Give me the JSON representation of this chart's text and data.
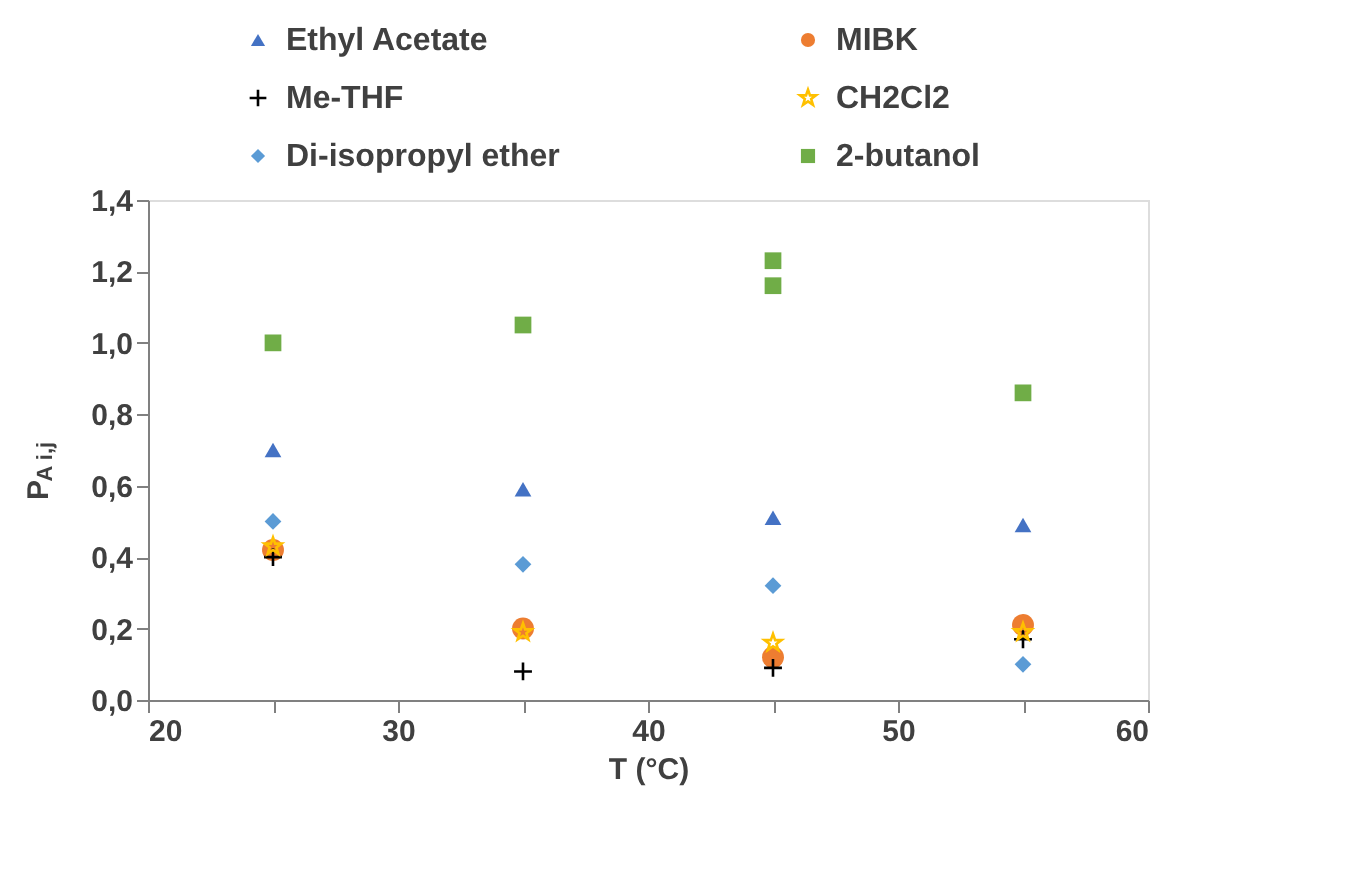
{
  "chart_data": {
    "type": "scatter",
    "xlabel": "T (°C)",
    "ylabel": "P$_{A i,j}$",
    "x": [
      25,
      35,
      45,
      55
    ],
    "series": [
      {
        "name": "Ethyl Acetate",
        "color": "#4472c4",
        "marker": "triangle",
        "values": [
          0.7,
          0.59,
          0.51,
          0.49
        ]
      },
      {
        "name": "MIBK",
        "color": "#ed7d31",
        "marker": "circle",
        "values": [
          0.42,
          0.2,
          0.12,
          0.21
        ]
      },
      {
        "name": "Me-THF",
        "color": "#000000",
        "marker": "cross",
        "values": [
          0.4,
          0.08,
          0.09,
          0.17
        ]
      },
      {
        "name": "CH2Cl2",
        "color": "#ffc000",
        "marker": "star",
        "values": [
          0.43,
          0.19,
          0.16,
          0.19
        ]
      },
      {
        "name": "Di-isopropyl ether",
        "color": "#5b9bd5",
        "marker": "diamond",
        "values": [
          0.5,
          0.38,
          0.32,
          0.1
        ]
      },
      {
        "name": "2-butanol",
        "color": "#70ad47",
        "marker": "square",
        "x": [
          25,
          35,
          45,
          45,
          55
        ],
        "values": [
          1.0,
          1.05,
          1.23,
          1.16,
          0.86
        ]
      }
    ],
    "xlim": [
      20,
      60
    ],
    "xticks": [
      20,
      {
        "value": 25,
        "label": null
      },
      30,
      {
        "value": 35,
        "label": null
      },
      40,
      {
        "value": 45,
        "label": null
      },
      50,
      {
        "value": 55,
        "label": null
      },
      60
    ],
    "ylim": [
      0,
      1.4
    ],
    "yticks": [
      {
        "value": 0,
        "label": "0,0"
      },
      {
        "value": 0.2,
        "label": "0,2"
      },
      {
        "value": 0.4,
        "label": "0,4"
      },
      {
        "value": 0.6,
        "label": "0,6"
      },
      {
        "value": 0.8,
        "label": "0,8"
      },
      {
        "value": 1.0,
        "label": "1,0"
      },
      {
        "value": 1.2,
        "label": "1,2"
      },
      {
        "value": 1.4,
        "label": "1,4"
      }
    ],
    "grid": false,
    "legend": "top"
  }
}
